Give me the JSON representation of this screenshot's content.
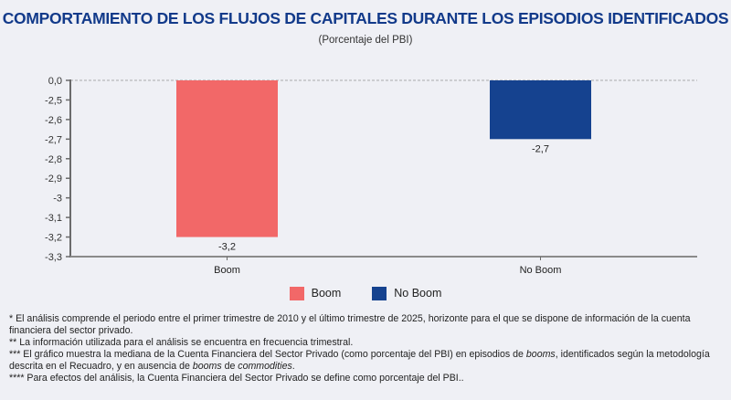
{
  "chart_data": {
    "type": "bar",
    "title": "COMPORTAMIENTO DE LOS FLUJOS DE CAPITALES DURANTE LOS EPISODIOS IDENTIFICADOS",
    "subtitle": "(Porcentaje del PBI)",
    "xlabel": "",
    "ylabel": "",
    "categories": [
      "Boom",
      "No Boom"
    ],
    "values": [
      -3.2,
      -2.7
    ],
    "data_labels": [
      "-3,2",
      "-2,7"
    ],
    "colors": [
      "#f26868",
      "#15428f"
    ],
    "ylim": [
      -3.3,
      0.0
    ],
    "axis_break": "between 0,0 and -2,5",
    "yticks": [
      {
        "label": "0,0",
        "value": 0.0
      },
      {
        "label": "-2,5",
        "value": -2.5
      },
      {
        "label": "-2,6",
        "value": -2.6
      },
      {
        "label": "-2,7",
        "value": -2.7
      },
      {
        "label": "-2,8",
        "value": -2.8
      },
      {
        "label": "-2,9",
        "value": -2.9
      },
      {
        "label": "-3",
        "value": -3.0
      },
      {
        "label": "-3,1",
        "value": -3.1
      },
      {
        "label": "-3,2",
        "value": -3.2
      },
      {
        "label": "-3,3",
        "value": -3.3
      }
    ],
    "grid": false,
    "zero_line": "dashed",
    "legend": {
      "position": "bottom",
      "entries": [
        {
          "label": "Boom",
          "color": "#f26868"
        },
        {
          "label": "No Boom",
          "color": "#15428f"
        }
      ]
    }
  },
  "notes": [
    "* El análisis comprende el periodo entre el primer trimestre de 2010 y el último trimestre de 2025, horizonte para el que se dispone de información de la cuenta financiera del sector privado.",
    "** La información utilizada para el análisis se encuentra en frecuencia trimestral.",
    "*** El gráfico muestra la mediana de la Cuenta Financiera del Sector Privado (como porcentaje del PBI) en episodios de booms, identificados según la metodología descrita en el Recuadro, y en ausencia de booms de commodities.",
    "**** Para efectos del análisis, la Cuenta Financiera del Sector Privado se define como porcentaje del PBI.."
  ],
  "notes_parts": {
    "n3_a": "*** El gráfico muestra la mediana de la Cuenta Financiera del Sector Privado (como porcentaje del PBI) en episodios de ",
    "n3_b": "booms",
    "n3_c": ", identificados según la metodología descrita en el Recuadro, y en ausencia de ",
    "n3_d": "booms",
    "n3_e": " de ",
    "n3_f": "commodities",
    "n3_g": "."
  }
}
